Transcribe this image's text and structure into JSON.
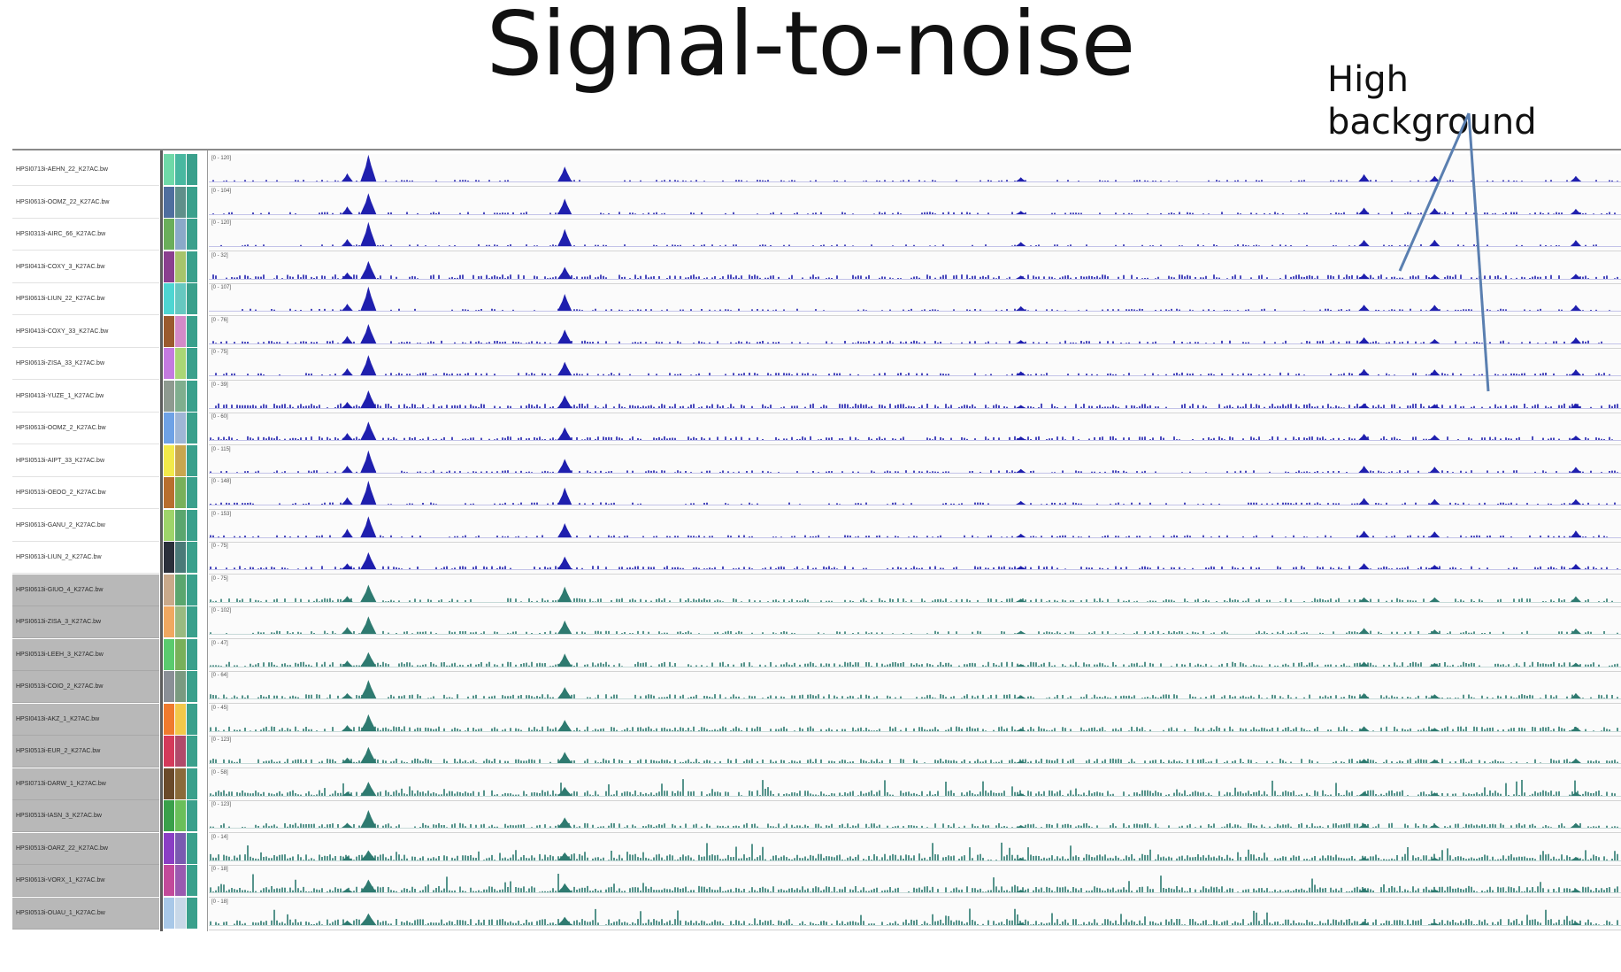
{
  "slide": {
    "title": "Signal-to-noise",
    "annotation": "High background"
  },
  "colors": {
    "group_a_signal": "#1f1fae",
    "group_b_signal": "#2e7a70",
    "arrow": "#5a7fb0"
  },
  "tracks": [
    {
      "name": "HPSI0713i-AEHN_22_K27AC.bw",
      "range": "[0 - 120]",
      "group": "a",
      "background": 0.05,
      "swatch": [
        "#6fd9a8",
        "#48b8a0",
        "#3aa08c"
      ]
    },
    {
      "name": "HPSI0613i-OOMZ_22_K27AC.bw",
      "range": "[0 - 104]",
      "group": "a",
      "background": 0.18,
      "swatch": [
        "#4f6e9e",
        "#5f8f8a",
        "#3aa08c"
      ]
    },
    {
      "name": "HPSI0313i-AIRC_66_K27AC.bw",
      "range": "[0 - 120]",
      "group": "a",
      "background": 0.07,
      "swatch": [
        "#6aae5a",
        "#8aa9c9",
        "#3aa08c"
      ]
    },
    {
      "name": "HPSI0413i-COXY_3_K27AC.bw",
      "range": "[0 - 32]",
      "group": "a",
      "background": 0.55,
      "swatch": [
        "#8a3f8f",
        "#a7c46b",
        "#3aa08c"
      ]
    },
    {
      "name": "HPSI0613i-LIUN_22_K27AC.bw",
      "range": "[0 - 107]",
      "group": "a",
      "background": 0.12,
      "swatch": [
        "#4ed6d2",
        "#66c8c0",
        "#3aa08c"
      ]
    },
    {
      "name": "HPSI0413i-COXY_33_K27AC.bw",
      "range": "[0 - 76]",
      "group": "a",
      "background": 0.28,
      "swatch": [
        "#9a5a2e",
        "#d48ac8",
        "#3aa08c"
      ]
    },
    {
      "name": "HPSI0613i-ZISA_33_K27AC.bw",
      "range": "[0 - 75]",
      "group": "a",
      "background": 0.25,
      "swatch": [
        "#c47ae0",
        "#a9d675",
        "#3aa08c"
      ]
    },
    {
      "name": "HPSI0413i-YUZE_1_K27AC.bw",
      "range": "[0 - 39]",
      "group": "a",
      "background": 0.6,
      "swatch": [
        "#8e9a90",
        "#7fae8e",
        "#3aa08c"
      ]
    },
    {
      "name": "HPSI0613i-OOMZ_2_K27AC.bw",
      "range": "[0 - 60]",
      "group": "a",
      "background": 0.42,
      "swatch": [
        "#6ea2e6",
        "#9fb6d6",
        "#3aa08c"
      ]
    },
    {
      "name": "HPSI0513i-AIPT_33_K27AC.bw",
      "range": "[0 - 115]",
      "group": "a",
      "background": 0.2,
      "swatch": [
        "#f2e94a",
        "#c9a64e",
        "#3aa08c"
      ]
    },
    {
      "name": "HPSI0513i-OEOO_2_K27AC.bw",
      "range": "[0 - 148]",
      "group": "a",
      "background": 0.15,
      "swatch": [
        "#b86e2e",
        "#78b05a",
        "#3aa08c"
      ]
    },
    {
      "name": "HPSI0613i-GANU_2_K27AC.bw",
      "range": "[0 - 153]",
      "group": "a",
      "background": 0.16,
      "swatch": [
        "#9ed46a",
        "#5aa66e",
        "#3aa08c"
      ]
    },
    {
      "name": "HPSI0613i-LIUN_2_K27AC.bw",
      "range": "[0 - 75]",
      "group": "a",
      "background": 0.35,
      "swatch": [
        "#2a2f3a",
        "#4a7a78",
        "#3aa08c"
      ]
    },
    {
      "name": "HPSI0613i-GIUO_4_K27AC.bw",
      "range": "[0 - 75]",
      "group": "b",
      "background": 0.45,
      "swatch": [
        "#c9a98a",
        "#5aa66e",
        "#3aa08c"
      ]
    },
    {
      "name": "HPSI0613i-ZISA_3_K27AC.bw",
      "range": "[0 - 102]",
      "group": "b",
      "background": 0.3,
      "swatch": [
        "#f0a860",
        "#9aba80",
        "#3aa08c"
      ]
    },
    {
      "name": "HPSI0513i-LEEH_3_K27AC.bw",
      "range": "[0 - 47]",
      "group": "b",
      "background": 0.62,
      "swatch": [
        "#5acb6e",
        "#78b05a",
        "#3aa08c"
      ]
    },
    {
      "name": "HPSI0513i-COIO_2_K27AC.bw",
      "range": "[0 - 64]",
      "group": "b",
      "background": 0.55,
      "swatch": [
        "#8a8f96",
        "#7a9a80",
        "#3aa08c"
      ]
    },
    {
      "name": "HPSI0413i-AKZ_1_K27AC.bw",
      "range": "[0 - 45]",
      "group": "b",
      "background": 0.66,
      "swatch": [
        "#ef7a2e",
        "#f2c84a",
        "#3aa08c"
      ]
    },
    {
      "name": "HPSI0513i-EUR_2_K27AC.bw",
      "range": "[0 - 123]",
      "group": "b",
      "background": 0.58,
      "swatch": [
        "#d43a5a",
        "#b04a6a",
        "#3aa08c"
      ]
    },
    {
      "name": "HPSI0713i-DARW_1_K27AC.bw",
      "range": "[0 - 58]",
      "group": "b",
      "background": 0.8,
      "swatch": [
        "#6a4a2a",
        "#8a6a3a",
        "#3aa08c"
      ]
    },
    {
      "name": "HPSI0513i-IASN_3_K27AC.bw",
      "range": "[0 - 123]",
      "group": "b",
      "background": 0.6,
      "swatch": [
        "#3aa04a",
        "#6abf5a",
        "#3aa08c"
      ]
    },
    {
      "name": "HPSI0513i-OARZ_22_K27AC.bw",
      "range": "[0 - 14]",
      "group": "b",
      "background": 0.95,
      "swatch": [
        "#8a3ec4",
        "#7a5ab0",
        "#3aa08c"
      ]
    },
    {
      "name": "HPSI0613i-VORX_1_K27AC.bw",
      "range": "[0 - 18]",
      "group": "b",
      "background": 0.92,
      "swatch": [
        "#c24a9a",
        "#9a5ab0",
        "#3aa08c"
      ]
    },
    {
      "name": "HPSI0513i-OUAU_1_K27AC.bw",
      "range": "[0 - 18]",
      "group": "b",
      "background": 0.9,
      "swatch": [
        "#a8c8e8",
        "#c8d8e8",
        "#3aa08c"
      ]
    }
  ]
}
